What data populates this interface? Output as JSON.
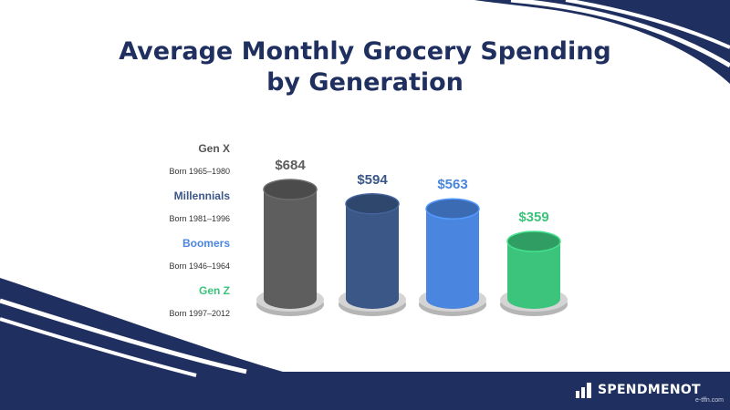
{
  "chart_data": {
    "type": "bar",
    "title": "Average Monthly Grocery Spending by Generation",
    "title_lines": [
      "Average Monthly Grocery Spending",
      "by Generation"
    ],
    "categories": [
      "Gen X",
      "Millennials",
      "Boomers",
      "Gen Z"
    ],
    "values": [
      684,
      594,
      563,
      359
    ],
    "value_labels": [
      "$684",
      "$594",
      "$563",
      "$359"
    ],
    "colors": [
      "#5e5e5e",
      "#3b5788",
      "#4a86e0",
      "#3cc47c"
    ],
    "legend": [
      {
        "name": "Gen X",
        "born": "Born 1965–1980",
        "color": "#5e5e5e"
      },
      {
        "name": "Millennials",
        "born": "Born 1981–1996",
        "color": "#3b5788"
      },
      {
        "name": "Boomers",
        "born": "Born 1946–1964",
        "color": "#4a86e0"
      },
      {
        "name": "Gen Z",
        "born": "Born 1997–2012",
        "color": "#3cc47c"
      }
    ],
    "legend_position": "left",
    "grid": false,
    "ylim": [
      0,
      700
    ]
  },
  "brand": {
    "name": "SPENDMENOT",
    "watermark": "e-tffn.com"
  },
  "colors": {
    "navy": "#1f2f5f",
    "pedestal": "#c9c9c9"
  }
}
